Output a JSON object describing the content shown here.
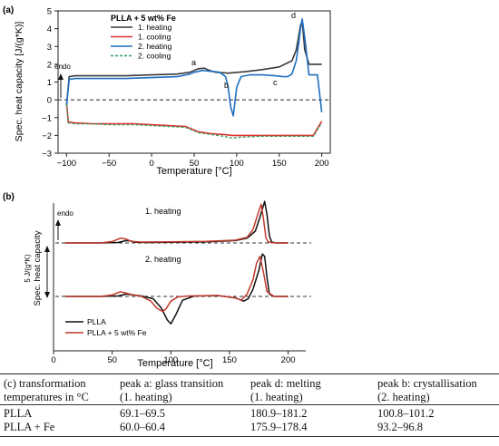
{
  "chart_data": [
    {
      "panel_label": "(a)",
      "type": "line",
      "legend_title": "PLLA + 5 wt% Fe",
      "legend_position": "top-center",
      "xlabel": "Temperature [°C]",
      "ylabel": "Spec. heat capacity [J/(g*K)]",
      "xlim": [
        -110,
        210
      ],
      "ylim": [
        -3,
        5
      ],
      "xticks": [
        "−100",
        "−50",
        "0",
        "50",
        "100",
        "150",
        "200"
      ],
      "yticks": [
        "−3",
        "−2",
        "−1",
        "0",
        "1",
        "2",
        "3",
        "4",
        "5"
      ],
      "zero_line": "dashed",
      "endo_label": "endo",
      "annotations": [
        "a",
        "b",
        "c",
        "d"
      ],
      "series": [
        {
          "name": "1. heating",
          "color": "#3a3a3a",
          "style": "solid",
          "x": [
            -100,
            -97,
            -90,
            -60,
            -30,
            0,
            30,
            45,
            50,
            55,
            62,
            68,
            75,
            90,
            110,
            130,
            150,
            165,
            170,
            173,
            175,
            177,
            180,
            185,
            195,
            200
          ],
          "y": [
            -0.3,
            1.3,
            1.35,
            1.35,
            1.35,
            1.4,
            1.45,
            1.55,
            1.65,
            1.75,
            1.78,
            1.65,
            1.55,
            1.5,
            1.58,
            1.7,
            1.85,
            2.2,
            2.8,
            3.6,
            4.2,
            4.4,
            2.8,
            2.0,
            2.0,
            2.0
          ]
        },
        {
          "name": "1. cooling",
          "color": "#e03030",
          "style": "solid",
          "x": [
            -100,
            -98,
            -90,
            -70,
            -50,
            -20,
            0,
            20,
            40,
            55,
            70,
            85,
            95,
            105,
            130,
            160,
            190,
            200
          ],
          "y": [
            -0.2,
            -1.25,
            -1.3,
            -1.35,
            -1.35,
            -1.35,
            -1.4,
            -1.45,
            -1.5,
            -1.8,
            -1.9,
            -1.95,
            -2.0,
            -2.0,
            -2.0,
            -2.0,
            -2.0,
            -1.2
          ]
        },
        {
          "name": "2. heating",
          "color": "#1f6fbf",
          "style": "solid",
          "x": [
            -100,
            -97,
            -90,
            -60,
            -30,
            0,
            30,
            45,
            50,
            55,
            60,
            70,
            80,
            87,
            90,
            93,
            96,
            100,
            105,
            115,
            130,
            145,
            155,
            160,
            165,
            170,
            173,
            175,
            177,
            180,
            185,
            190,
            195,
            200
          ],
          "y": [
            -0.3,
            1.15,
            1.2,
            1.2,
            1.2,
            1.25,
            1.3,
            1.45,
            1.55,
            1.6,
            1.65,
            1.6,
            1.55,
            1.3,
            0.7,
            -0.4,
            -0.9,
            0.7,
            1.3,
            1.4,
            1.4,
            1.35,
            1.3,
            1.3,
            1.45,
            2.2,
            3.2,
            4.0,
            4.55,
            3.5,
            1.4,
            1.4,
            1.4,
            -0.7
          ]
        },
        {
          "name": "2. cooling",
          "color": "#2e9e5e",
          "style": "dashed",
          "x": [
            -100,
            -98,
            -90,
            -70,
            -50,
            -20,
            0,
            20,
            40,
            55,
            70,
            85,
            95,
            105,
            130,
            160,
            190,
            200
          ],
          "y": [
            -0.25,
            -1.3,
            -1.35,
            -1.35,
            -1.4,
            -1.4,
            -1.45,
            -1.5,
            -1.55,
            -1.85,
            -1.95,
            -2.05,
            -2.15,
            -2.1,
            -2.05,
            -2.05,
            -2.05,
            -1.3
          ]
        }
      ]
    },
    {
      "panel_label": "(b)",
      "type": "line",
      "xlabel": "Temperature [°C]",
      "ylabel": "Spec. heat capacity",
      "scale_bar_label": "5 J/(g*K)",
      "xlim": [
        0,
        215
      ],
      "xticks": [
        "0",
        "50",
        "100",
        "150",
        "200"
      ],
      "endo_label": "endo",
      "group_labels": [
        "1. heating",
        "2. heating"
      ],
      "legend_position": "bottom-left",
      "y_units_note": "y values in J/(g*K) relative to each group's baseline",
      "series": [
        {
          "name": "PLLA",
          "group": "1. heating",
          "color": "#111111",
          "x": [
            10,
            40,
            55,
            62,
            66,
            70,
            80,
            100,
            130,
            155,
            165,
            172,
            176,
            180,
            182,
            184,
            186,
            190,
            200
          ],
          "y": [
            0,
            0,
            0.1,
            0.5,
            0.4,
            0.15,
            0.1,
            0.15,
            0.25,
            0.5,
            1.0,
            2.5,
            5.5,
            8.8,
            6.0,
            1.5,
            0.2,
            0,
            0
          ]
        },
        {
          "name": "PLLA + 5 wt% Fe",
          "group": "1. heating",
          "color": "#c0392b",
          "x": [
            10,
            40,
            50,
            57,
            62,
            66,
            75,
            100,
            130,
            155,
            165,
            170,
            174,
            177,
            179,
            181,
            183,
            190,
            200
          ],
          "y": [
            0,
            0,
            0.3,
            1.0,
            0.8,
            0.35,
            0.2,
            0.25,
            0.35,
            0.6,
            1.2,
            2.8,
            6.0,
            8.2,
            5.0,
            1.2,
            0.2,
            0,
            0
          ]
        },
        {
          "name": "PLLA",
          "group": "2. heating",
          "color": "#111111",
          "x": [
            10,
            40,
            55,
            62,
            68,
            75,
            85,
            92,
            97,
            100,
            104,
            110,
            120,
            140,
            155,
            162,
            166,
            170,
            175,
            178,
            180,
            182,
            184,
            188,
            200
          ],
          "y": [
            0,
            0,
            0.1,
            0.5,
            0.3,
            0.1,
            -0.5,
            -2.5,
            -5.0,
            -5.8,
            -4.0,
            -0.8,
            0.1,
            0.2,
            -0.3,
            -1.0,
            -0.5,
            1.5,
            5.5,
            9.0,
            8.5,
            4.0,
            0.5,
            0,
            0
          ]
        },
        {
          "name": "PLLA + 5 wt% Fe",
          "group": "2. heating",
          "color": "#c0392b",
          "x": [
            10,
            40,
            50,
            57,
            62,
            68,
            75,
            83,
            88,
            93,
            96,
            100,
            106,
            115,
            140,
            155,
            160,
            165,
            170,
            173,
            176,
            179,
            182,
            188,
            200
          ],
          "y": [
            0,
            0,
            0.3,
            1.0,
            0.7,
            0.3,
            0,
            -1.0,
            -2.5,
            -3.2,
            -2.6,
            -1.0,
            -0.1,
            0.1,
            0.2,
            -0.3,
            -0.8,
            0.5,
            3.5,
            7.0,
            8.5,
            5.0,
            1.0,
            0,
            0
          ]
        }
      ]
    }
  ],
  "table": {
    "headers": [
      [
        "(c) transformation",
        "temperatures in °C"
      ],
      [
        "peak a: glass transition",
        "(1. heating)"
      ],
      [
        "peak d: melting",
        "(1. heating)"
      ],
      [
        "peak b: crystallisation",
        "(2. heating)"
      ]
    ],
    "rows": [
      [
        "PLLA",
        "69.1–69.5",
        "180.9–181.2",
        "100.8–101.2"
      ],
      [
        "PLLA + Fe",
        "60.0–60.4",
        "175.9–178.4",
        "93.2–96.8"
      ]
    ]
  }
}
